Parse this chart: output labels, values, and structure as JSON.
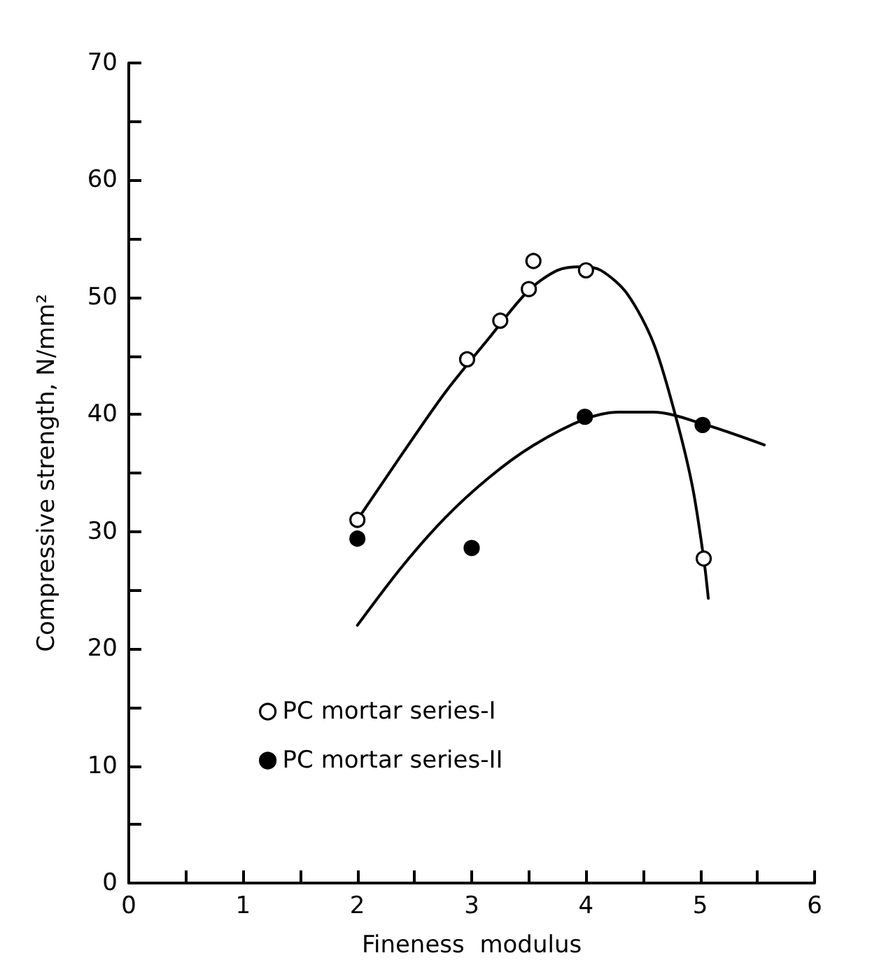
{
  "chart_data": {
    "type": "scatter",
    "xlabel": "Fineness  modulus",
    "ylabel": "Compressive strength, N/mm²",
    "xlim": [
      0,
      6
    ],
    "ylim": [
      0,
      70
    ],
    "xticks": [
      0,
      {
        "value": 0.5,
        "label": null
      },
      1,
      {
        "value": 1.5,
        "label": null
      },
      2,
      {
        "value": 2.5,
        "label": null
      },
      3,
      {
        "value": 3.5,
        "label": null
      },
      4,
      {
        "value": 4.5,
        "label": null
      },
      5,
      {
        "value": 5.5,
        "label": null
      },
      6
    ],
    "yticks": [
      0,
      {
        "value": 5,
        "label": null
      },
      10,
      {
        "value": 15,
        "label": null
      },
      20,
      {
        "value": 25,
        "label": null
      },
      30,
      {
        "value": 35,
        "label": null
      },
      40,
      {
        "value": 45,
        "label": null
      },
      50,
      {
        "value": 55,
        "label": null
      },
      60,
      {
        "value": 65,
        "label": null
      },
      70
    ],
    "grid": false,
    "legend": "bottom left",
    "marker": "circle",
    "series": [
      {
        "name": "PC mortar series-I",
        "color": "#ffffff",
        "x": [
          2,
          2.96,
          3.25,
          3.5,
          3.54,
          4,
          5.03
        ],
        "values": [
          31,
          44.7,
          48,
          50.7,
          53.1,
          52.3,
          27.7
        ]
      },
      {
        "name": "PC mortar series-II",
        "color": "#000000",
        "x": [
          2,
          3,
          3.99,
          5.02
        ],
        "values": [
          29.4,
          28.6,
          39.8,
          39.1
        ]
      },
      {
        "type": "line",
        "color": "#000000",
        "marker": "none",
        "x": [
          2,
          2.39,
          2.77,
          3.15,
          3.49,
          3.75,
          3.96,
          4.13,
          4.36,
          4.59,
          4.78,
          4.93,
          5.03,
          5.07
        ],
        "values": [
          31,
          36.6,
          41.9,
          46.5,
          50.5,
          52.3,
          52.6,
          52.3,
          50.3,
          46.1,
          40,
          33.9,
          27.7,
          24.3
        ]
      },
      {
        "type": "line",
        "color": "#000000",
        "marker": "none",
        "x": [
          2,
          2.39,
          2.77,
          3.15,
          3.53,
          3.99,
          4.28,
          4.59,
          5.02,
          5.56
        ],
        "values": [
          22,
          27,
          31.2,
          34.6,
          37.3,
          39.6,
          40.2,
          40.2,
          39.2,
          37.4
        ]
      }
    ]
  }
}
